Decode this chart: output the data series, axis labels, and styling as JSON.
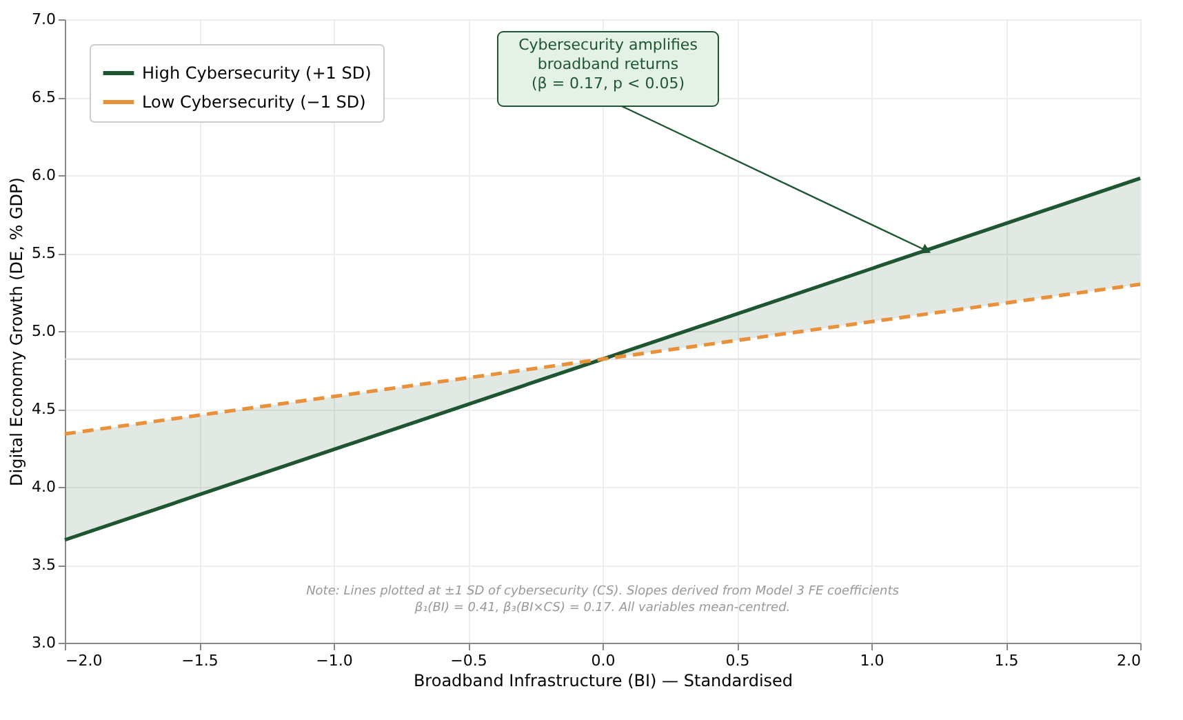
{
  "chart_data": {
    "type": "line",
    "xlabel": "Broadband Infrastructure (BI) — Standardised",
    "ylabel": "Digital Economy Growth (DE, % GDP)",
    "x": [
      -2,
      -1,
      0,
      1,
      2
    ],
    "series": [
      {
        "name": "High Cybersecurity (+1 SD)",
        "color": "#1e5631",
        "line_style": "solid",
        "values": [
          3.66,
          4.24,
          4.82,
          5.4,
          5.98
        ],
        "lower": [
          3.66,
          4.24,
          4.82,
          5.06,
          5.3
        ],
        "upper": [
          4.34,
          4.58,
          4.82,
          5.4,
          5.98
        ]
      },
      {
        "name": "Low Cybersecurity (−1 SD)",
        "color": "#e8913a",
        "line_style": "dashed",
        "values": [
          4.34,
          4.58,
          4.82,
          5.06,
          5.3
        ]
      }
    ],
    "xlim": [
      -2,
      2
    ],
    "xticks": [
      {
        "value": -2,
        "label": "−2.0"
      },
      {
        "value": -1.5,
        "label": "−1.5"
      },
      {
        "value": -1,
        "label": "−1.0"
      },
      {
        "value": -0.5,
        "label": "−0.5"
      },
      {
        "value": 0,
        "label": "0.0"
      },
      {
        "value": 0.5,
        "label": "0.5"
      },
      {
        "value": 1,
        "label": "1.0"
      },
      {
        "value": 1.5,
        "label": "1.5"
      },
      {
        "value": 2,
        "label": "2.0"
      }
    ],
    "ylim": [
      3,
      7
    ],
    "yticks": [
      {
        "value": 3,
        "label": "3.0"
      },
      {
        "value": 3.5,
        "label": "3.5"
      },
      {
        "value": 4,
        "label": "4.0"
      },
      {
        "value": 4.5,
        "label": "4.5"
      },
      {
        "value": 5,
        "label": "5.0"
      },
      {
        "value": 5.5,
        "label": "5.5"
      },
      {
        "value": 6,
        "label": "6.0"
      },
      {
        "value": 6.5,
        "label": "6.5"
      },
      {
        "value": 7,
        "label": "7.0"
      }
    ],
    "ref_lines": [
      {
        "axis": "y",
        "value": 4.82,
        "color": "#dddddd",
        "line_style": "solid"
      }
    ],
    "grid": true,
    "legend": "top left",
    "annotations": [
      {
        "text": "Cybersecurity amplifies\nbroadband returns\n(β = 0.17, p < 0.05)",
        "x": 1.2,
        "y": 5.52
      },
      "Note: Lines plotted at ±1 SD of cybersecurity (CS). Slopes derived from Model 3 FE coefficients\nβ₁(BI) = 0.41, β₃(BI×CS) = 0.17. All variables mean-centred."
    ]
  }
}
